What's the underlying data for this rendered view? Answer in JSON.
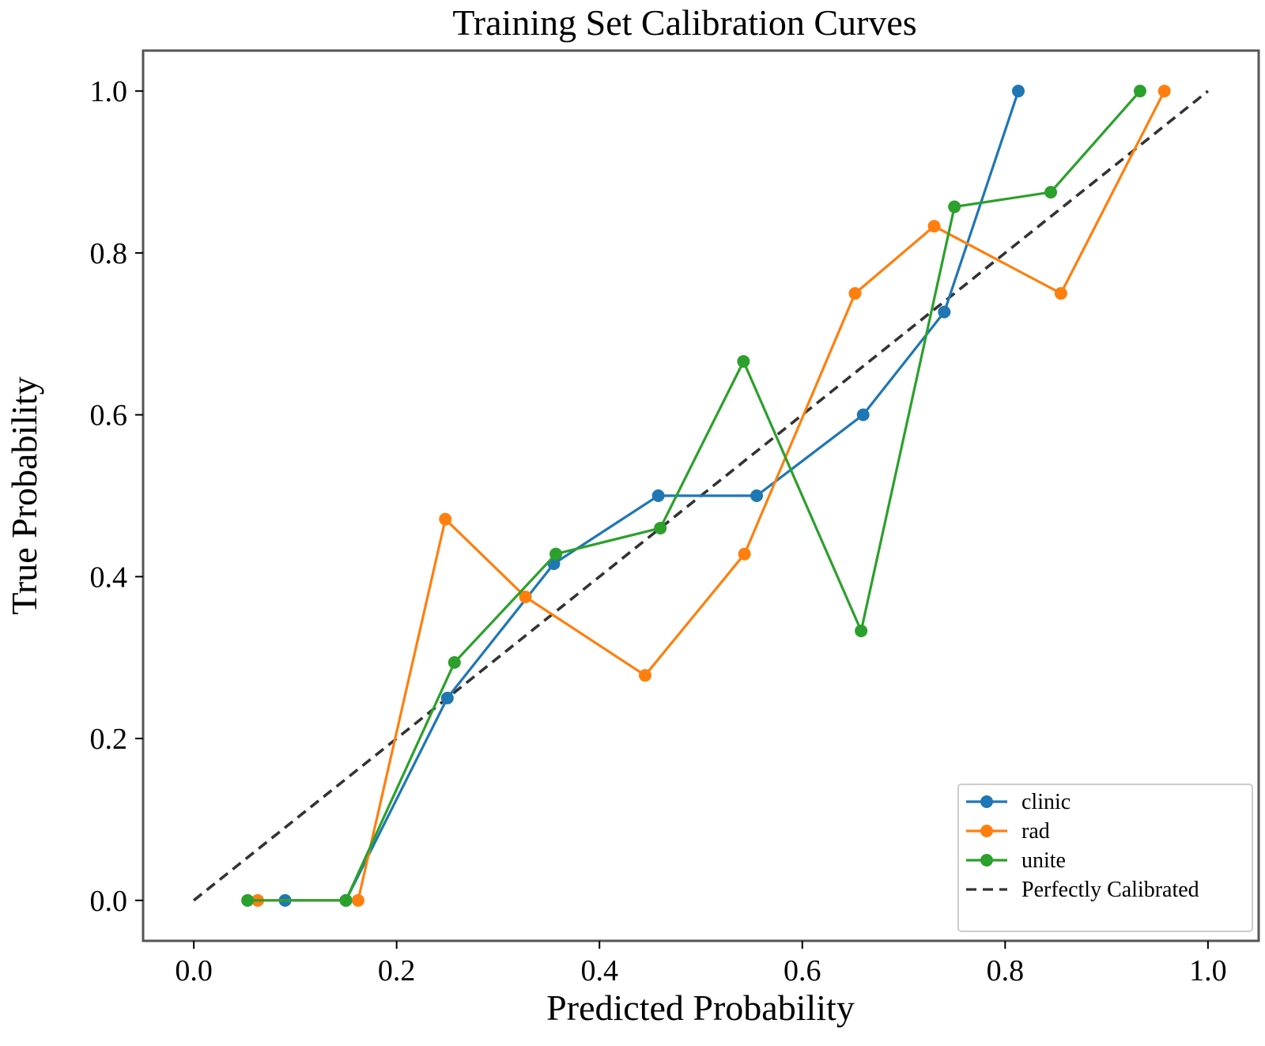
{
  "chart_data": {
    "type": "line",
    "title": "Training Set Calibration Curves",
    "xlabel": "Predicted Probability",
    "ylabel": "True Probability",
    "xlim": [
      -0.05,
      1.05
    ],
    "ylim": [
      -0.05,
      1.05
    ],
    "xticks": [
      0.0,
      0.2,
      0.4,
      0.6,
      0.8,
      1.0
    ],
    "yticks": [
      0.0,
      0.2,
      0.4,
      0.6,
      0.8,
      1.0
    ],
    "xtick_labels": [
      "0.0",
      "0.2",
      "0.4",
      "0.6",
      "0.8",
      "1.0"
    ],
    "ytick_labels": [
      "0.0",
      "0.2",
      "0.4",
      "0.6",
      "0.8",
      "1.0"
    ],
    "grid": false,
    "legend_position": "lower-right",
    "series": [
      {
        "name": "clinic",
        "color": "#1f77b4",
        "marker": "circle",
        "x": [
          0.09,
          0.15,
          0.25,
          0.355,
          0.458,
          0.555,
          0.66,
          0.74,
          0.813
        ],
        "y": [
          0.0,
          0.0,
          0.25,
          0.416,
          0.5,
          0.5,
          0.6,
          0.727,
          1.0
        ]
      },
      {
        "name": "rad",
        "color": "#ff7f0e",
        "marker": "circle",
        "x": [
          0.063,
          0.162,
          0.248,
          0.327,
          0.445,
          0.543,
          0.652,
          0.73,
          0.855,
          0.957
        ],
        "y": [
          0.0,
          0.0,
          0.471,
          0.375,
          0.278,
          0.428,
          0.75,
          0.833,
          0.75,
          1.0
        ]
      },
      {
        "name": "unite",
        "color": "#2ca02c",
        "marker": "circle",
        "x": [
          0.053,
          0.15,
          0.257,
          0.357,
          0.46,
          0.542,
          0.658,
          0.75,
          0.845,
          0.933
        ],
        "y": [
          0.0,
          0.0,
          0.294,
          0.428,
          0.46,
          0.666,
          0.333,
          0.857,
          0.875,
          1.0
        ]
      },
      {
        "name": "Perfectly Calibrated",
        "color": "#333333",
        "style": "dashed",
        "x": [
          0.0,
          1.0
        ],
        "y": [
          0.0,
          1.0
        ]
      }
    ]
  }
}
